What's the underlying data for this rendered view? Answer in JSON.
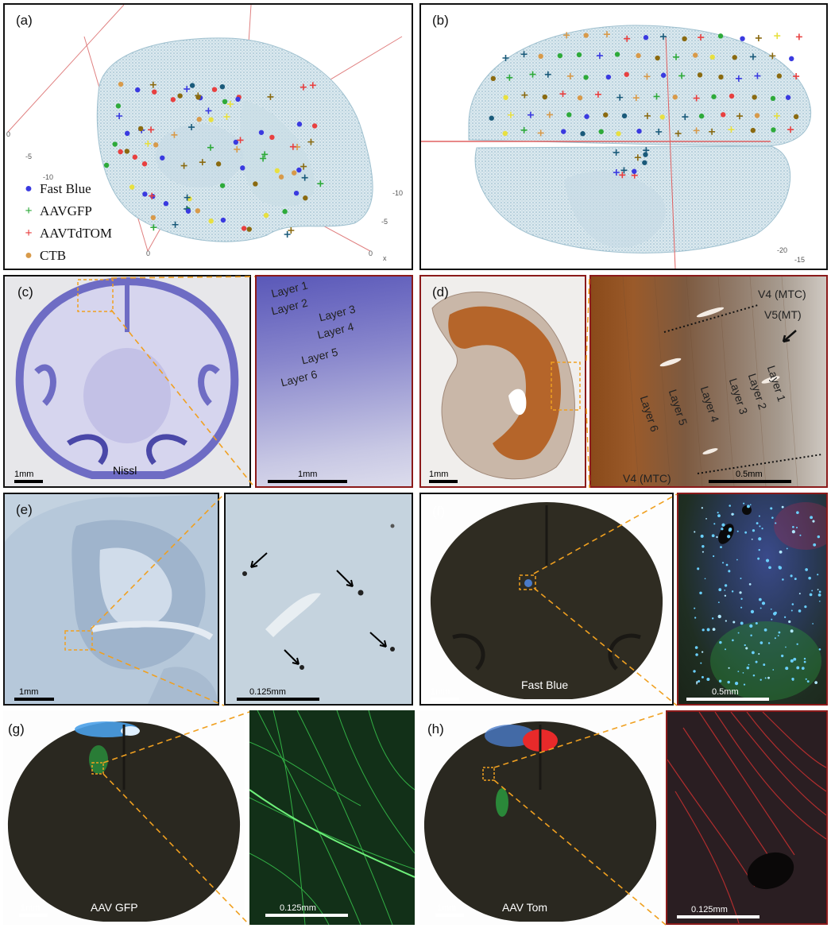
{
  "panels": {
    "a": {
      "label": "(a)"
    },
    "b": {
      "label": "(b)"
    },
    "c": {
      "label": "(c)",
      "stain": "Nissl",
      "scale_left": "1mm",
      "scale_right": "1mm",
      "layers": [
        "Layer 1",
        "Layer 2",
        "Layer 3",
        "Layer 4",
        "Layer 5",
        "Layer 6"
      ]
    },
    "d": {
      "label": "(d)",
      "scale_left": "1mm",
      "scale_right": "0.5mm",
      "area_top": "V4 (MTC)",
      "area_mid": "V5(MT)",
      "area_bottom": "V4 (MTC)",
      "layers": [
        "Layer 1",
        "Layer 2",
        "Layer 3",
        "Layer 4",
        "Layer 5",
        "Layer 6"
      ]
    },
    "e": {
      "label": "(e)",
      "scale_left": "1mm",
      "scale_right": "0.125mm"
    },
    "f": {
      "label": "(f)",
      "stain": "Fast Blue",
      "scale_left": "1mm",
      "scale_right": "0.5mm"
    },
    "g": {
      "label": "(g)",
      "stain": "AAV GFP",
      "scale_left": "1mm",
      "scale_right": "0.125mm"
    },
    "h": {
      "label": "(h)",
      "stain": "AAV Tom",
      "scale_left": "1mm",
      "scale_right": "0.125mm"
    }
  },
  "legend": [
    {
      "label": "Fast Blue",
      "marker": "dot",
      "color": "#3a3ae0"
    },
    {
      "label": "AAVGFP",
      "marker": "plus",
      "color": "#2eaa3a"
    },
    {
      "label": "AAVTdTOM",
      "marker": "plus",
      "color": "#e84040"
    },
    {
      "label": "CTB",
      "marker": "dot",
      "color": "#d89a4a"
    }
  ],
  "axis_ticks_a": {
    "t1": "0",
    "t2": "-5",
    "t3": "-10",
    "t4": "-10",
    "t5": "-5",
    "t6": "0",
    "t7": "0",
    "t8": "x",
    "t9": "-15"
  },
  "axis_ticks_b": {
    "t1": "-20",
    "t2": "-15"
  },
  "colors": {
    "brain_mesh": "#a9cbd9",
    "axis_red": "#e06060",
    "nissl": "#7a78c8",
    "dab_brown": "#b5652a",
    "dashed_yellow": "#f0a020",
    "fluor_bg": "#2a2820"
  }
}
